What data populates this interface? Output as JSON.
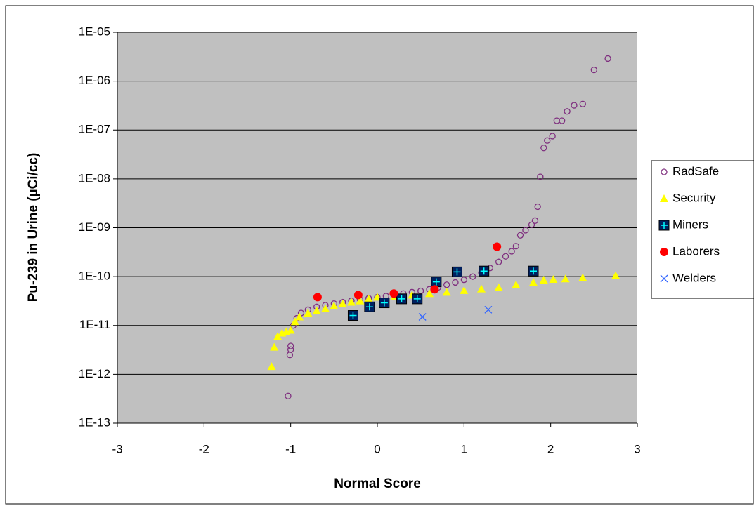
{
  "chart_data": {
    "type": "scatter",
    "xlabel": "Normal Score",
    "ylabel": "Pu-239 in Urine (µCi/cc)",
    "xlim": [
      -3,
      3
    ],
    "xticks": [
      -3,
      -2,
      -1,
      0,
      1,
      2,
      3
    ],
    "ylim": [
      1e-13,
      1e-05
    ],
    "yscale": "log",
    "yticks": [
      {
        "value": 1e-13,
        "label": "1E-13"
      },
      {
        "value": 1e-12,
        "label": "1E-12"
      },
      {
        "value": 1e-11,
        "label": "1E-11"
      },
      {
        "value": 1e-10,
        "label": "1E-10"
      },
      {
        "value": 1e-09,
        "label": "1E-09"
      },
      {
        "value": 1e-08,
        "label": "1E-08"
      },
      {
        "value": 1e-07,
        "label": "1E-07"
      },
      {
        "value": 1e-06,
        "label": "1E-06"
      },
      {
        "value": 1e-05,
        "label": "1E-05"
      }
    ],
    "grid": true,
    "legend": "right",
    "series": [
      {
        "name": "RadSafe",
        "color": "#7f2f7f",
        "marker": "open-circle",
        "x": [
          -1.03,
          -1.01,
          -1.0,
          -1.0,
          -0.97,
          -0.93,
          -0.88,
          -0.8,
          -0.7,
          -0.6,
          -0.5,
          -0.4,
          -0.3,
          -0.2,
          -0.1,
          0,
          0.1,
          0.2,
          0.3,
          0.4,
          0.5,
          0.6,
          0.7,
          0.8,
          0.9,
          1.0,
          1.1,
          1.2,
          1.3,
          1.4,
          1.48,
          1.55,
          1.6,
          1.65,
          1.71,
          1.78,
          1.82,
          1.85,
          1.88,
          1.92,
          1.96,
          2.02,
          2.07,
          2.13,
          2.19,
          2.27,
          2.37,
          2.5,
          2.66
        ],
        "values": [
          3.6e-13,
          2.5e-12,
          3.2e-12,
          3.8e-12,
          1e-11,
          1.4e-11,
          1.8e-11,
          2.1e-11,
          2.4e-11,
          2.6e-11,
          2.8e-11,
          3e-11,
          3.2e-11,
          3.4e-11,
          3.6e-11,
          3.8e-11,
          4e-11,
          4.2e-11,
          4.5e-11,
          4.8e-11,
          5.1e-11,
          5.5e-11,
          6e-11,
          6.8e-11,
          7.6e-11,
          8.6e-11,
          1e-10,
          1.2e-10,
          1.5e-10,
          2e-10,
          2.6e-10,
          3.3e-10,
          4.2e-10,
          7e-10,
          8.9e-10,
          1.15e-09,
          1.4e-09,
          2.7e-09,
          1.1e-08,
          4.3e-08,
          6.1e-08,
          7.5e-08,
          1.55e-07,
          1.55e-07,
          2.4e-07,
          3.2e-07,
          3.4e-07,
          1.7e-06,
          2.9e-06
        ]
      },
      {
        "name": "Security",
        "color": "#ffff00",
        "marker": "triangle",
        "x": [
          -1.22,
          -1.19,
          -1.15,
          -1.1,
          -1.05,
          -1.0,
          -0.95,
          -0.9,
          -0.8,
          -0.7,
          -0.6,
          -0.5,
          -0.4,
          -0.3,
          -0.2,
          -0.1,
          0,
          0.2,
          0.4,
          0.6,
          0.8,
          1.0,
          1.2,
          1.4,
          1.6,
          1.8,
          1.92,
          2.03,
          2.17,
          2.37,
          2.75
        ],
        "values": [
          1.45e-12,
          3.6e-12,
          6e-12,
          7e-12,
          7.5e-12,
          8e-12,
          1.2e-11,
          1.5e-11,
          1.8e-11,
          2e-11,
          2.2e-11,
          2.5e-11,
          2.8e-11,
          3e-11,
          3.2e-11,
          3.5e-11,
          3.8e-11,
          4e-11,
          4.2e-11,
          4.5e-11,
          4.8e-11,
          5.2e-11,
          5.6e-11,
          6e-11,
          6.8e-11,
          7.6e-11,
          8.5e-11,
          8.8e-11,
          9e-11,
          9.5e-11,
          1.05e-10
        ]
      },
      {
        "name": "Miners",
        "color": "#002060",
        "marker": "plus-square",
        "x": [
          -0.28,
          -0.09,
          0.08,
          0.28,
          0.46,
          0.68,
          0.92,
          1.23,
          1.8
        ],
        "values": [
          1.6e-11,
          2.4e-11,
          2.9e-11,
          3.5e-11,
          3.5e-11,
          7.8e-11,
          1.25e-10,
          1.3e-10,
          1.3e-10
        ]
      },
      {
        "name": "Laborers",
        "color": "#ff0000",
        "marker": "circle",
        "x": [
          -0.69,
          -0.22,
          0.19,
          0.66,
          1.38
        ],
        "values": [
          3.8e-11,
          4.2e-11,
          4.5e-11,
          5.5e-11,
          4.1e-10
        ]
      },
      {
        "name": "Welders",
        "color": "#3366ff",
        "marker": "cross",
        "x": [
          0.52,
          1.28
        ],
        "values": [
          1.5e-11,
          2.1e-11
        ]
      }
    ]
  }
}
